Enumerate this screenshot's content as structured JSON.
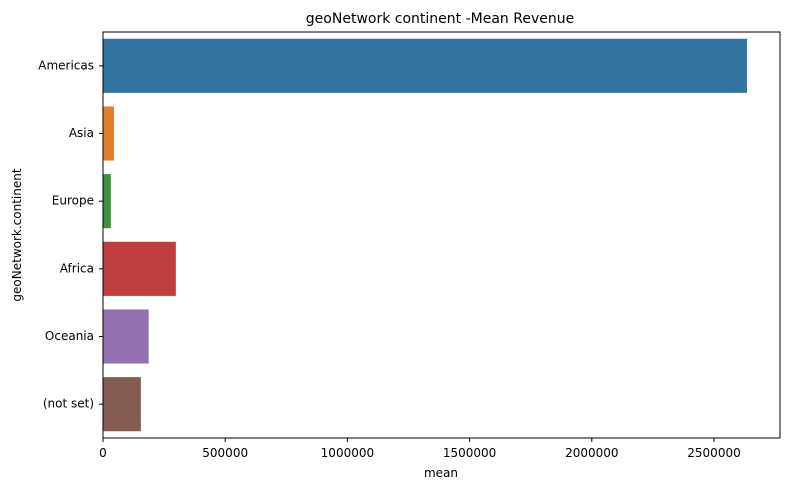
{
  "chart_data": {
    "type": "bar",
    "orientation": "horizontal",
    "title": "geoNetwork continent -Mean Revenue",
    "xlabel": "mean",
    "ylabel": "geoNetwork.continent",
    "categories": [
      "Americas",
      "Asia",
      "Europe",
      "Africa",
      "Oceania",
      "(not set)"
    ],
    "values": [
      2635000,
      45000,
      32000,
      298000,
      187000,
      155000
    ],
    "colors": [
      "#3274a1",
      "#e1812c",
      "#3a923a",
      "#c03d3e",
      "#9372b2",
      "#845b53"
    ],
    "xlim": [
      0,
      2770000
    ],
    "xticks": [
      0,
      500000,
      1000000,
      1500000,
      2000000,
      2500000
    ],
    "xtick_labels": [
      "0",
      "500000",
      "1000000",
      "1500000",
      "2000000",
      "2500000"
    ],
    "grid": false,
    "legend": "none"
  }
}
